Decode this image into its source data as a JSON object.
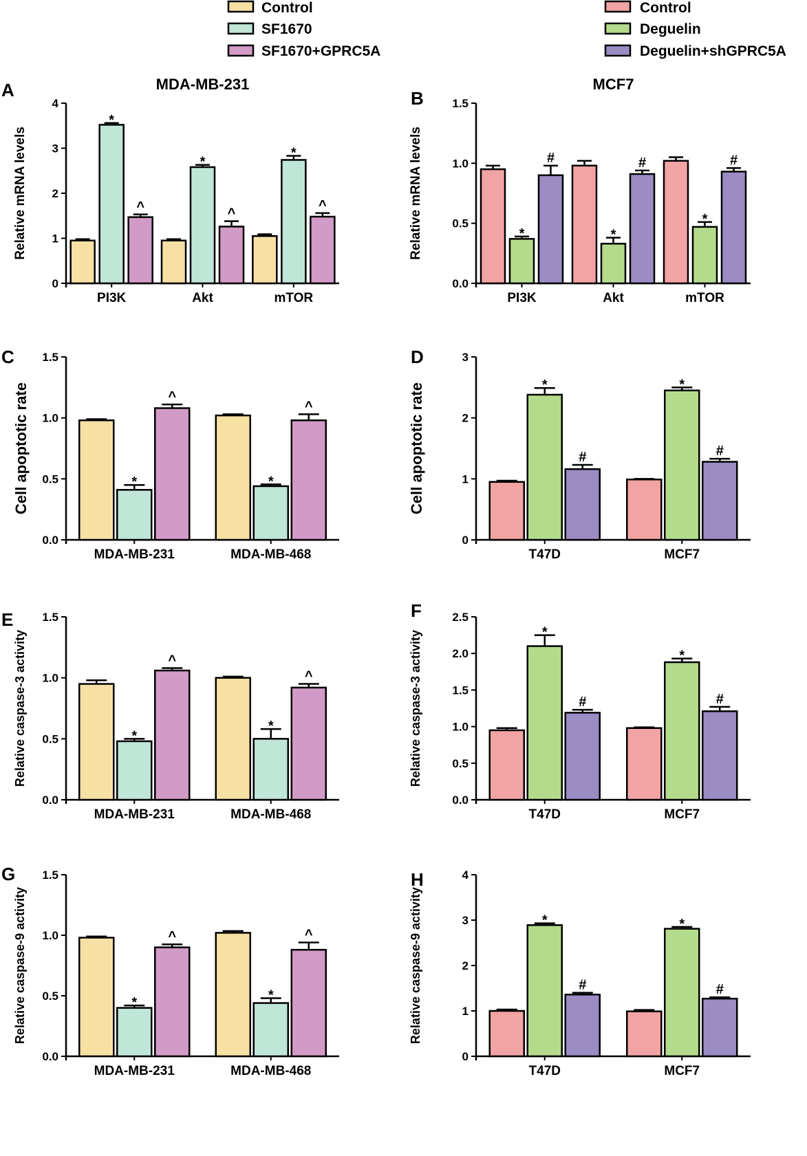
{
  "legends": [
    {
      "group": "sf1670",
      "items": [
        {
          "key": "control",
          "label": "Control",
          "color": "#f7e0a3"
        },
        {
          "key": "sf1670",
          "label": "SF1670",
          "color": "#bfe6d7"
        },
        {
          "key": "sf1670_gprc5a",
          "label": "SF1670+GPRC5A",
          "color": "#d29ac6"
        }
      ]
    },
    {
      "group": "deguelin",
      "items": [
        {
          "key": "control",
          "label": "Control",
          "color": "#f2a3a3"
        },
        {
          "key": "deguelin",
          "label": "Deguelin",
          "color": "#b4db8c"
        },
        {
          "key": "deguelin_sh",
          "label": "Deguelin+shGPRC5A",
          "color": "#9b8cc4"
        }
      ]
    }
  ],
  "chart_data": [
    {
      "panel": "A",
      "type": "bar",
      "title": "MDA-MB-231",
      "ylabel": "Relative mRNA levels",
      "ylim": [
        0,
        4
      ],
      "yticks": [
        "0",
        "1",
        "2",
        "3",
        "4"
      ],
      "categories": [
        "PI3K",
        "Akt",
        "mTOR"
      ],
      "series": [
        {
          "name": "Control",
          "color": "#f7e0a3",
          "values": [
            0.95,
            0.95,
            1.05
          ],
          "errors": [
            0.03,
            0.03,
            0.04
          ],
          "marks": [
            "",
            "",
            ""
          ]
        },
        {
          "name": "SF1670",
          "color": "#bfe6d7",
          "values": [
            3.52,
            2.58,
            2.74
          ],
          "errors": [
            0.04,
            0.05,
            0.09
          ],
          "marks": [
            "*",
            "*",
            "*"
          ]
        },
        {
          "name": "SF1670+GPRC5A",
          "color": "#d29ac6",
          "values": [
            1.47,
            1.26,
            1.48
          ],
          "errors": [
            0.06,
            0.12,
            0.08
          ],
          "marks": [
            "^",
            "^",
            "^"
          ]
        }
      ]
    },
    {
      "panel": "B",
      "type": "bar",
      "title": "MCF7",
      "ylabel": "Relative mRNA levels",
      "ylim": [
        0,
        1.5
      ],
      "yticks": [
        "0.0",
        "0.5",
        "1.0",
        "1.5"
      ],
      "categories": [
        "PI3K",
        "Akt",
        "mTOR"
      ],
      "series": [
        {
          "name": "Control",
          "color": "#f2a3a3",
          "values": [
            0.95,
            0.98,
            1.02
          ],
          "errors": [
            0.03,
            0.04,
            0.03
          ],
          "marks": [
            "",
            "",
            ""
          ]
        },
        {
          "name": "Deguelin",
          "color": "#b4db8c",
          "values": [
            0.37,
            0.33,
            0.47
          ],
          "errors": [
            0.02,
            0.05,
            0.04
          ],
          "marks": [
            "*",
            "*",
            "*"
          ]
        },
        {
          "name": "Deguelin+shGPRC5A",
          "color": "#9b8cc4",
          "values": [
            0.9,
            0.91,
            0.93
          ],
          "errors": [
            0.08,
            0.03,
            0.03
          ],
          "marks": [
            "#",
            "#",
            "#"
          ]
        }
      ]
    },
    {
      "panel": "C",
      "type": "bar",
      "title": "",
      "ylabel": "Cell apoptotic rate",
      "ylim": [
        0,
        1.5
      ],
      "yticks": [
        "0.0",
        "0.5",
        "1.0",
        "1.5"
      ],
      "categories": [
        "MDA-MB-231",
        "MDA-MB-468"
      ],
      "series": [
        {
          "name": "Control",
          "color": "#f7e0a3",
          "values": [
            0.98,
            1.02
          ],
          "errors": [
            0.01,
            0.01
          ],
          "marks": [
            "",
            ""
          ]
        },
        {
          "name": "SF1670",
          "color": "#bfe6d7",
          "values": [
            0.41,
            0.44
          ],
          "errors": [
            0.04,
            0.015
          ],
          "marks": [
            "*",
            "*"
          ]
        },
        {
          "name": "SF1670+GPRC5A",
          "color": "#d29ac6",
          "values": [
            1.08,
            0.98
          ],
          "errors": [
            0.03,
            0.05
          ],
          "marks": [
            "^",
            "^"
          ]
        }
      ]
    },
    {
      "panel": "D",
      "type": "bar",
      "title": "",
      "ylabel": "Cell apoptotic rate",
      "ylim": [
        0,
        3
      ],
      "yticks": [
        "0",
        "1",
        "2",
        "3"
      ],
      "categories": [
        "T47D",
        "MCF7"
      ],
      "series": [
        {
          "name": "Control",
          "color": "#f2a3a3",
          "values": [
            0.95,
            0.99
          ],
          "errors": [
            0.02,
            0.01
          ],
          "marks": [
            "",
            ""
          ]
        },
        {
          "name": "Deguelin",
          "color": "#b4db8c",
          "values": [
            2.38,
            2.45
          ],
          "errors": [
            0.11,
            0.05
          ],
          "marks": [
            "*",
            "*"
          ]
        },
        {
          "name": "Deguelin+shGPRC5A",
          "color": "#9b8cc4",
          "values": [
            1.16,
            1.28
          ],
          "errors": [
            0.07,
            0.05
          ],
          "marks": [
            "#",
            "#"
          ]
        }
      ]
    },
    {
      "panel": "E",
      "type": "bar",
      "title": "",
      "ylabel": "Relative caspase-3 activity",
      "ylim": [
        0,
        1.5
      ],
      "yticks": [
        "0.0",
        "0.5",
        "1.0",
        "1.5"
      ],
      "categories": [
        "MDA-MB-231",
        "MDA-MB-468"
      ],
      "series": [
        {
          "name": "Control",
          "color": "#f7e0a3",
          "values": [
            0.95,
            1.0
          ],
          "errors": [
            0.03,
            0.01
          ],
          "marks": [
            "",
            ""
          ]
        },
        {
          "name": "SF1670",
          "color": "#bfe6d7",
          "values": [
            0.48,
            0.5
          ],
          "errors": [
            0.02,
            0.08
          ],
          "marks": [
            "*",
            "*"
          ]
        },
        {
          "name": "SF1670+GPRC5A",
          "color": "#d29ac6",
          "values": [
            1.06,
            0.92
          ],
          "errors": [
            0.02,
            0.03
          ],
          "marks": [
            "^",
            "^"
          ]
        }
      ]
    },
    {
      "panel": "F",
      "type": "bar",
      "title": "",
      "ylabel": "Relative caspase-3 activity",
      "ylim": [
        0,
        2.5
      ],
      "yticks": [
        "0.0",
        "0.5",
        "1.0",
        "1.5",
        "2.0",
        "2.5"
      ],
      "categories": [
        "T47D",
        "MCF7"
      ],
      "series": [
        {
          "name": "Control",
          "color": "#f2a3a3",
          "values": [
            0.95,
            0.98
          ],
          "errors": [
            0.03,
            0.01
          ],
          "marks": [
            "",
            ""
          ]
        },
        {
          "name": "Deguelin",
          "color": "#b4db8c",
          "values": [
            2.1,
            1.88
          ],
          "errors": [
            0.15,
            0.05
          ],
          "marks": [
            "*",
            "*"
          ]
        },
        {
          "name": "Deguelin+shGPRC5A",
          "color": "#9b8cc4",
          "values": [
            1.19,
            1.21
          ],
          "errors": [
            0.04,
            0.06
          ],
          "marks": [
            "#",
            "#"
          ]
        }
      ]
    },
    {
      "panel": "G",
      "type": "bar",
      "title": "",
      "ylabel": "Relative caspase-9 activity",
      "ylim": [
        0,
        1.5
      ],
      "yticks": [
        "0.0",
        "0.5",
        "1.0",
        "1.5"
      ],
      "categories": [
        "MDA-MB-231",
        "MDA-MB-468"
      ],
      "series": [
        {
          "name": "Control",
          "color": "#f7e0a3",
          "values": [
            0.98,
            1.02
          ],
          "errors": [
            0.01,
            0.015
          ],
          "marks": [
            "",
            ""
          ]
        },
        {
          "name": "SF1670",
          "color": "#bfe6d7",
          "values": [
            0.4,
            0.44
          ],
          "errors": [
            0.02,
            0.04
          ],
          "marks": [
            "*",
            "*"
          ]
        },
        {
          "name": "SF1670+GPRC5A",
          "color": "#d29ac6",
          "values": [
            0.9,
            0.88
          ],
          "errors": [
            0.025,
            0.06
          ],
          "marks": [
            "^",
            "^"
          ]
        }
      ]
    },
    {
      "panel": "H",
      "type": "bar",
      "title": "",
      "ylabel": "Relative caspase-9 activity",
      "ylim": [
        0,
        4
      ],
      "yticks": [
        "0",
        "1",
        "2",
        "3",
        "4"
      ],
      "categories": [
        "T47D",
        "MCF7"
      ],
      "series": [
        {
          "name": "Control",
          "color": "#f2a3a3",
          "values": [
            1.0,
            0.99
          ],
          "errors": [
            0.03,
            0.03
          ],
          "marks": [
            "",
            ""
          ]
        },
        {
          "name": "Deguelin",
          "color": "#b4db8c",
          "values": [
            2.89,
            2.81
          ],
          "errors": [
            0.04,
            0.04
          ],
          "marks": [
            "*",
            "*"
          ]
        },
        {
          "name": "Deguelin+shGPRC5A",
          "color": "#9b8cc4",
          "values": [
            1.36,
            1.27
          ],
          "errors": [
            0.04,
            0.03
          ],
          "marks": [
            "#",
            "#"
          ]
        }
      ]
    }
  ]
}
